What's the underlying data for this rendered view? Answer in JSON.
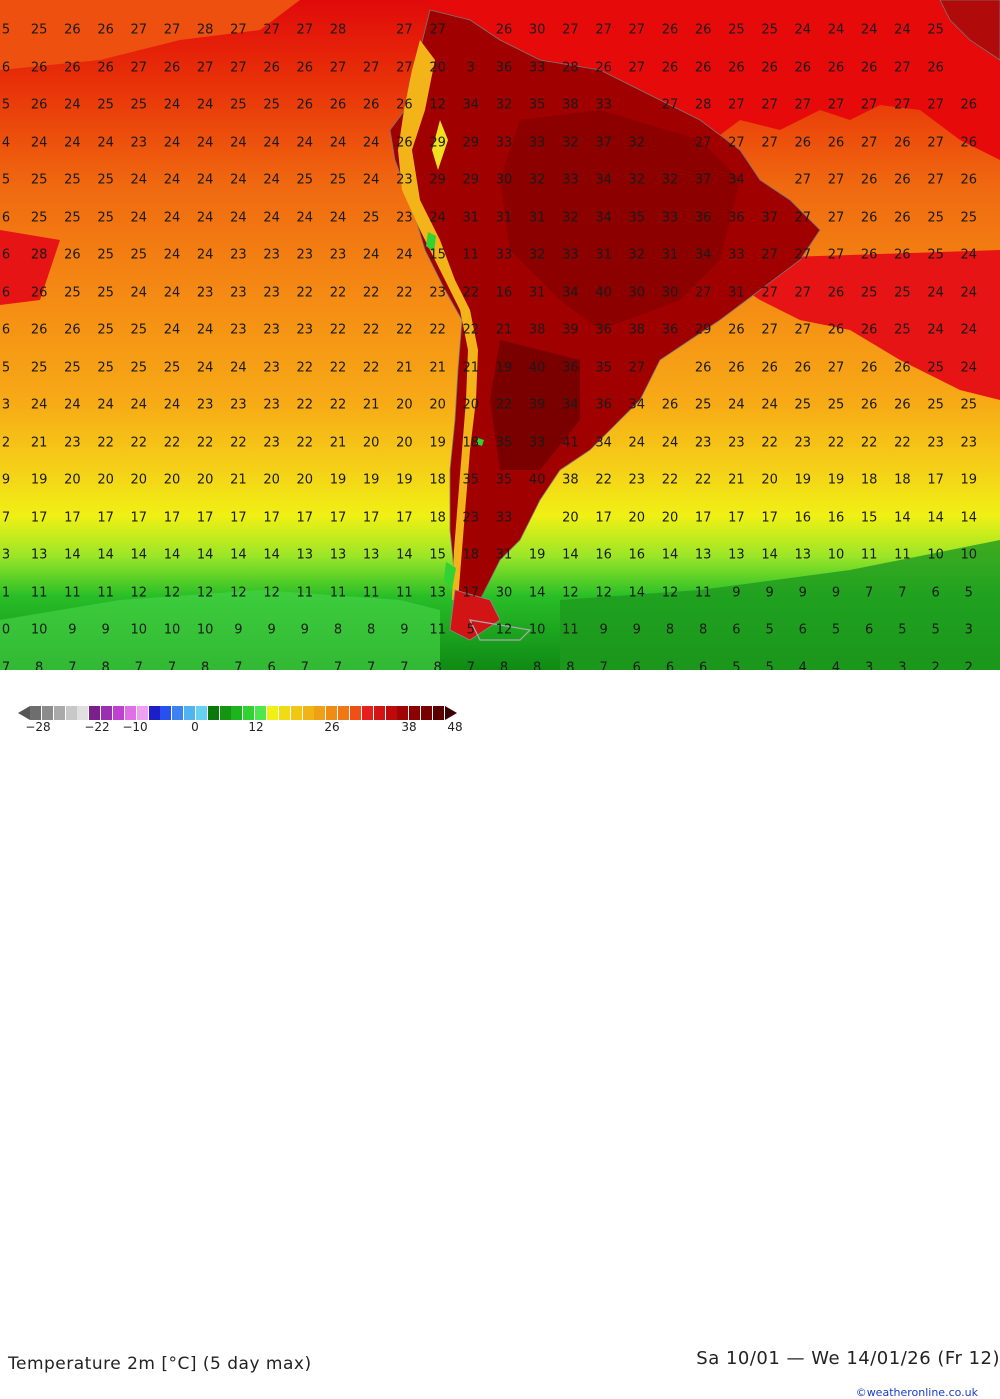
{
  "map": {
    "title": "Temperature 2m [°C] (5 day max)",
    "date_range": "Sa 10/01 — We 14/01/26 (Fr 12)",
    "credit": "©weatheronline.co.uk",
    "grid_values": [
      [
        "5",
        "25",
        "26",
        "26",
        "27",
        "27",
        "28",
        "27",
        "27",
        "27",
        "28",
        "",
        "27",
        "27",
        "",
        "26",
        "30",
        "27",
        "27",
        "27",
        "26",
        "26",
        "25",
        "25",
        "24",
        "24",
        "24",
        "24",
        "25",
        ""
      ],
      [
        "6",
        "26",
        "26",
        "26",
        "27",
        "26",
        "27",
        "27",
        "26",
        "26",
        "27",
        "27",
        "27",
        "20",
        "3",
        "36",
        "33",
        "28",
        "26",
        "27",
        "26",
        "26",
        "26",
        "26",
        "26",
        "26",
        "26",
        "27",
        "26",
        ""
      ],
      [
        "5",
        "26",
        "24",
        "25",
        "25",
        "24",
        "24",
        "25",
        "25",
        "26",
        "26",
        "26",
        "26",
        "12",
        "34",
        "32",
        "35",
        "38",
        "33",
        "",
        "27",
        "28",
        "27",
        "27",
        "27",
        "27",
        "27",
        "27",
        "27",
        "26"
      ],
      [
        "4",
        "24",
        "24",
        "24",
        "23",
        "24",
        "24",
        "24",
        "24",
        "24",
        "24",
        "24",
        "26",
        "29",
        "29",
        "33",
        "33",
        "32",
        "37",
        "32",
        "",
        "27",
        "27",
        "27",
        "26",
        "26",
        "27",
        "26",
        "27",
        "26"
      ],
      [
        "5",
        "25",
        "25",
        "25",
        "24",
        "24",
        "24",
        "24",
        "24",
        "25",
        "25",
        "24",
        "23",
        "29",
        "29",
        "30",
        "32",
        "33",
        "34",
        "32",
        "32",
        "37",
        "34",
        "",
        "27",
        "27",
        "26",
        "26",
        "27",
        "26"
      ],
      [
        "6",
        "25",
        "25",
        "25",
        "24",
        "24",
        "24",
        "24",
        "24",
        "24",
        "24",
        "25",
        "23",
        "24",
        "31",
        "31",
        "31",
        "32",
        "34",
        "35",
        "33",
        "36",
        "36",
        "37",
        "27",
        "27",
        "26",
        "26",
        "25",
        "25"
      ],
      [
        "6",
        "28",
        "26",
        "25",
        "25",
        "24",
        "24",
        "23",
        "23",
        "23",
        "23",
        "24",
        "24",
        "15",
        "11",
        "33",
        "32",
        "33",
        "31",
        "32",
        "31",
        "34",
        "33",
        "27",
        "27",
        "27",
        "26",
        "26",
        "25",
        "24"
      ],
      [
        "6",
        "26",
        "25",
        "25",
        "24",
        "24",
        "23",
        "23",
        "23",
        "22",
        "22",
        "22",
        "22",
        "23",
        "22",
        "16",
        "31",
        "34",
        "40",
        "30",
        "30",
        "27",
        "31",
        "27",
        "27",
        "26",
        "25",
        "25",
        "24",
        "24"
      ],
      [
        "6",
        "26",
        "26",
        "25",
        "25",
        "24",
        "24",
        "23",
        "23",
        "23",
        "22",
        "22",
        "22",
        "22",
        "22",
        "21",
        "38",
        "39",
        "36",
        "38",
        "36",
        "29",
        "26",
        "27",
        "27",
        "26",
        "26",
        "25",
        "24",
        "24"
      ],
      [
        "5",
        "25",
        "25",
        "25",
        "25",
        "25",
        "24",
        "24",
        "23",
        "22",
        "22",
        "22",
        "21",
        "21",
        "21",
        "19",
        "40",
        "36",
        "35",
        "27",
        "",
        "26",
        "26",
        "26",
        "26",
        "27",
        "26",
        "26",
        "25",
        "24"
      ],
      [
        "3",
        "24",
        "24",
        "24",
        "24",
        "24",
        "23",
        "23",
        "23",
        "22",
        "22",
        "21",
        "20",
        "20",
        "20",
        "22",
        "39",
        "34",
        "36",
        "34",
        "26",
        "25",
        "24",
        "24",
        "25",
        "25",
        "26",
        "26",
        "25",
        "25"
      ],
      [
        "2",
        "21",
        "23",
        "22",
        "22",
        "22",
        "22",
        "22",
        "23",
        "22",
        "21",
        "20",
        "20",
        "19",
        "18",
        "35",
        "33",
        "41",
        "34",
        "24",
        "24",
        "23",
        "23",
        "22",
        "23",
        "22",
        "22",
        "22",
        "23",
        "23"
      ],
      [
        "9",
        "19",
        "20",
        "20",
        "20",
        "20",
        "20",
        "21",
        "20",
        "20",
        "19",
        "19",
        "19",
        "18",
        "35",
        "35",
        "40",
        "38",
        "22",
        "23",
        "22",
        "22",
        "21",
        "20",
        "19",
        "19",
        "18",
        "18",
        "17",
        "19"
      ],
      [
        "7",
        "17",
        "17",
        "17",
        "17",
        "17",
        "17",
        "17",
        "17",
        "17",
        "17",
        "17",
        "17",
        "18",
        "23",
        "33",
        "",
        "20",
        "17",
        "20",
        "20",
        "17",
        "17",
        "17",
        "16",
        "16",
        "15",
        "14",
        "14",
        "14"
      ],
      [
        "3",
        "13",
        "14",
        "14",
        "14",
        "14",
        "14",
        "14",
        "14",
        "13",
        "13",
        "13",
        "14",
        "15",
        "18",
        "31",
        "19",
        "14",
        "16",
        "16",
        "14",
        "13",
        "13",
        "14",
        "13",
        "10",
        "11",
        "11",
        "10",
        "10"
      ],
      [
        "1",
        "11",
        "11",
        "11",
        "12",
        "12",
        "12",
        "12",
        "12",
        "11",
        "11",
        "11",
        "11",
        "13",
        "17",
        "30",
        "14",
        "12",
        "12",
        "14",
        "12",
        "11",
        "9",
        "9",
        "9",
        "9",
        "7",
        "7",
        "6",
        "5"
      ],
      [
        "0",
        "10",
        "9",
        "9",
        "10",
        "10",
        "10",
        "9",
        "9",
        "9",
        "8",
        "8",
        "9",
        "11",
        "5",
        "12",
        "10",
        "11",
        "9",
        "9",
        "8",
        "8",
        "6",
        "5",
        "6",
        "5",
        "6",
        "5",
        "5",
        "3"
      ],
      [
        "7",
        "8",
        "7",
        "8",
        "7",
        "7",
        "8",
        "7",
        "6",
        "7",
        "7",
        "7",
        "7",
        "8",
        "7",
        "8",
        "8",
        "8",
        "7",
        "6",
        "6",
        "6",
        "5",
        "5",
        "4",
        "4",
        "3",
        "3",
        "2",
        "2"
      ]
    ],
    "color_scale": {
      "tick_labels": [
        "-28",
        "-22",
        "-10",
        "0",
        "12",
        "26",
        "38",
        "48"
      ],
      "colors": [
        "#6e6e6e",
        "#8c8c8c",
        "#aaaaaa",
        "#c8c8c8",
        "#e0e0e0",
        "#7a1f8c",
        "#9a2fb0",
        "#c040d0",
        "#e070e8",
        "#f0a0f0",
        "#1e1ec8",
        "#2850f0",
        "#3c82f0",
        "#50b4f0",
        "#64d2f0",
        "#0a780a",
        "#149614",
        "#1eb41e",
        "#32d232",
        "#50e650",
        "#f0f014",
        "#f0dc14",
        "#f0c814",
        "#f0b414",
        "#f0a014",
        "#f08c14",
        "#f07814",
        "#f05014",
        "#e61e1e",
        "#d21414",
        "#be0a0a",
        "#a00505",
        "#8c0000",
        "#780000",
        "#5a0000"
      ]
    }
  }
}
